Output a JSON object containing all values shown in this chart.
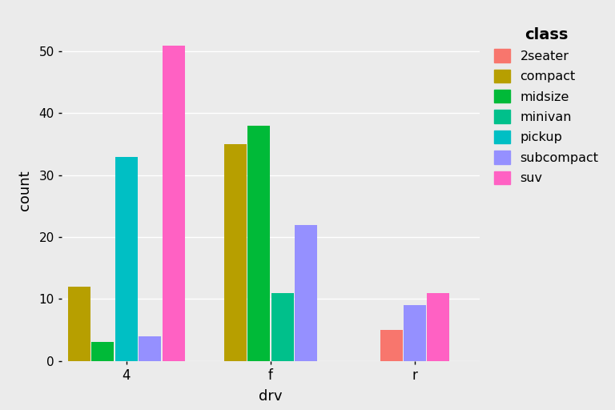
{
  "drv_groups": [
    "4",
    "f",
    "r"
  ],
  "classes": [
    "2seater",
    "compact",
    "midsize",
    "minivan",
    "pickup",
    "subcompact",
    "suv"
  ],
  "colors": {
    "2seater": "#F8766D",
    "compact": "#B79F00",
    "midsize": "#00BA38",
    "minivan": "#00C08B",
    "pickup": "#00BFC4",
    "subcompact": "#9590FF",
    "suv": "#FF61C3"
  },
  "data": {
    "4": {
      "compact": 12,
      "midsize": 3,
      "pickup": 33,
      "subcompact": 4,
      "suv": 51
    },
    "f": {
      "compact": 35,
      "midsize": 38,
      "minivan": 11,
      "subcompact": 22
    },
    "r": {
      "2seater": 5,
      "subcompact": 9,
      "suv": 11
    }
  },
  "group_classes": {
    "4": [
      "compact",
      "midsize",
      "pickup",
      "subcompact",
      "suv"
    ],
    "f": [
      "compact",
      "midsize",
      "minivan",
      "subcompact"
    ],
    "r": [
      "2seater",
      "subcompact",
      "suv"
    ]
  },
  "xlabel": "drv",
  "ylabel": "count",
  "legend_title": "class",
  "ylim": [
    0,
    55
  ],
  "yticks": [
    0,
    10,
    20,
    30,
    40,
    50
  ],
  "background_color": "#EBEBEB",
  "grid_color": "#FFFFFF",
  "bar_width": 0.9,
  "group_positions": {
    "4": 0,
    "f": 1,
    "r": 2
  },
  "group_scale": 5.5
}
